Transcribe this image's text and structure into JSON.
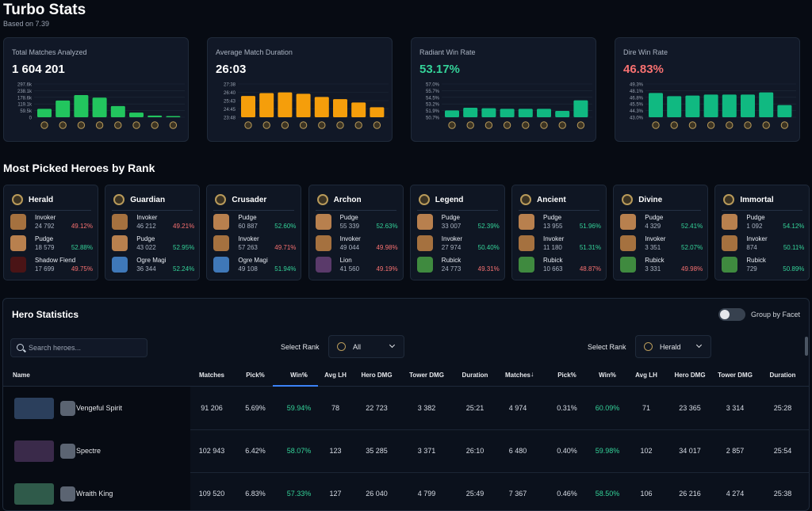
{
  "page": {
    "title": "Turbo Stats",
    "subtitle": "Based on 7.39"
  },
  "colors": {
    "green": "#34d399",
    "red": "#f87171",
    "bar_green": "#22c55e",
    "bar_orange": "#f59e0b",
    "bar_teal": "#10b981"
  },
  "stat_cards": [
    {
      "label": "Total Matches Analyzed",
      "value": "1 604 201",
      "value_color": "#ffffff",
      "chart_data": {
        "type": "bar",
        "y_ticks": [
          "297.6k",
          "238.1k",
          "178.6k",
          "119.1k",
          "59.5k",
          "0"
        ],
        "ylim": [
          0,
          297600
        ],
        "values": [
          75000,
          150000,
          198000,
          175000,
          100000,
          42000,
          15000,
          5000
        ],
        "bar_color": "#22c55e"
      }
    },
    {
      "label": "Average Match Duration",
      "value": "26:03",
      "value_color": "#ffffff",
      "chart_data": {
        "type": "bar",
        "y_ticks": [
          "27:38",
          "26:40",
          "25:43",
          "24:45",
          "23:48"
        ],
        "ylim": [
          1428,
          1658
        ],
        "values": [
          1575,
          1595,
          1600,
          1590,
          1568,
          1553,
          1530,
          1497
        ],
        "bar_color": "#f59e0b"
      }
    },
    {
      "label": "Radiant Win Rate",
      "value": "53.17%",
      "value_color": "#34d399",
      "chart_data": {
        "type": "bar",
        "y_ticks": [
          "57.0%",
          "55.7%",
          "54.5%",
          "53.2%",
          "51.9%",
          "50.7%"
        ],
        "ylim": [
          50.7,
          57.0
        ],
        "values": [
          52.0,
          52.5,
          52.4,
          52.3,
          52.3,
          52.3,
          51.9,
          53.9
        ],
        "bar_color": "#10b981"
      }
    },
    {
      "label": "Dire Win Rate",
      "value": "46.83%",
      "value_color": "#f87171",
      "chart_data": {
        "type": "bar",
        "y_ticks": [
          "49.3%",
          "48.1%",
          "46.8%",
          "45.5%",
          "44.3%",
          "43.0%"
        ],
        "ylim": [
          43.0,
          49.3
        ],
        "values": [
          47.6,
          47.0,
          47.1,
          47.3,
          47.3,
          47.3,
          47.7,
          45.3
        ],
        "bar_color": "#10b981"
      }
    }
  ],
  "most_picked": {
    "title": "Most Picked Heroes by Rank",
    "ranks": [
      {
        "name": "Herald",
        "heroes": [
          {
            "name": "Invoker",
            "matches": "24 792",
            "win": "49.12%",
            "positive": false,
            "avatar": "#a5713f"
          },
          {
            "name": "Pudge",
            "matches": "18 579",
            "win": "52.88%",
            "positive": true,
            "avatar": "#b8804e"
          },
          {
            "name": "Shadow Fiend",
            "matches": "17 699",
            "win": "49.75%",
            "positive": false,
            "avatar": "#4a1416"
          }
        ]
      },
      {
        "name": "Guardian",
        "heroes": [
          {
            "name": "Invoker",
            "matches": "46 212",
            "win": "49.21%",
            "positive": false,
            "avatar": "#a5713f"
          },
          {
            "name": "Pudge",
            "matches": "43 022",
            "win": "52.95%",
            "positive": true,
            "avatar": "#b8804e"
          },
          {
            "name": "Ogre Magi",
            "matches": "36 344",
            "win": "52.24%",
            "positive": true,
            "avatar": "#3f78b8"
          }
        ]
      },
      {
        "name": "Crusader",
        "heroes": [
          {
            "name": "Pudge",
            "matches": "60 887",
            "win": "52.60%",
            "positive": true,
            "avatar": "#b8804e"
          },
          {
            "name": "Invoker",
            "matches": "57 263",
            "win": "49.71%",
            "positive": false,
            "avatar": "#a5713f"
          },
          {
            "name": "Ogre Magi",
            "matches": "49 108",
            "win": "51.94%",
            "positive": true,
            "avatar": "#3f78b8"
          }
        ]
      },
      {
        "name": "Archon",
        "heroes": [
          {
            "name": "Pudge",
            "matches": "55 339",
            "win": "52.63%",
            "positive": true,
            "avatar": "#b8804e"
          },
          {
            "name": "Invoker",
            "matches": "49 044",
            "win": "49.98%",
            "positive": false,
            "avatar": "#a5713f"
          },
          {
            "name": "Lion",
            "matches": "41 560",
            "win": "49.19%",
            "positive": false,
            "avatar": "#5a3a6a"
          }
        ]
      },
      {
        "name": "Legend",
        "heroes": [
          {
            "name": "Pudge",
            "matches": "33 007",
            "win": "52.39%",
            "positive": true,
            "avatar": "#b8804e"
          },
          {
            "name": "Invoker",
            "matches": "27 974",
            "win": "50.40%",
            "positive": true,
            "avatar": "#a5713f"
          },
          {
            "name": "Rubick",
            "matches": "24 773",
            "win": "49.31%",
            "positive": false,
            "avatar": "#3f8a3f"
          }
        ]
      },
      {
        "name": "Ancient",
        "heroes": [
          {
            "name": "Pudge",
            "matches": "13 955",
            "win": "51.96%",
            "positive": true,
            "avatar": "#b8804e"
          },
          {
            "name": "Invoker",
            "matches": "11 180",
            "win": "51.31%",
            "positive": true,
            "avatar": "#a5713f"
          },
          {
            "name": "Rubick",
            "matches": "10 663",
            "win": "48.87%",
            "positive": false,
            "avatar": "#3f8a3f"
          }
        ]
      },
      {
        "name": "Divine",
        "heroes": [
          {
            "name": "Pudge",
            "matches": "4 329",
            "win": "52.41%",
            "positive": true,
            "avatar": "#b8804e"
          },
          {
            "name": "Invoker",
            "matches": "3 351",
            "win": "52.07%",
            "positive": true,
            "avatar": "#a5713f"
          },
          {
            "name": "Rubick",
            "matches": "3 331",
            "win": "49.98%",
            "positive": false,
            "avatar": "#3f8a3f"
          }
        ]
      },
      {
        "name": "Immortal",
        "heroes": [
          {
            "name": "Pudge",
            "matches": "1 092",
            "win": "54.12%",
            "positive": true,
            "avatar": "#b8804e"
          },
          {
            "name": "Invoker",
            "matches": "874",
            "win": "50.11%",
            "positive": true,
            "avatar": "#a5713f"
          },
          {
            "name": "Rubick",
            "matches": "729",
            "win": "50.89%",
            "positive": true,
            "avatar": "#3f8a3f"
          }
        ]
      }
    ]
  },
  "hero_stats": {
    "title": "Hero Statistics",
    "toggle_label": "Group by Facet",
    "toggle_on": false,
    "search_placeholder": "Search heroes...",
    "select_rank_label": "Select Rank",
    "left_select": "All",
    "right_select": "Herald",
    "columns": [
      "Name",
      "Matches",
      "Pick%",
      "Win%",
      "Avg LH",
      "Hero DMG",
      "Tower DMG",
      "Duration",
      "Matches",
      "Pick%",
      "Win%",
      "Avg LH",
      "Hero DMG",
      "Tower DMG",
      "Duration"
    ],
    "rows": [
      {
        "name": "Vengeful Spirit",
        "thumb": "#2b3f5c",
        "left": [
          "91 206",
          "5.69%",
          "59.94%",
          "78",
          "22 723",
          "3 382",
          "25:21"
        ],
        "right": [
          "4 974",
          "0.31%",
          "60.09%",
          "71",
          "23 365",
          "3 314",
          "25:28"
        ]
      },
      {
        "name": "Spectre",
        "thumb": "#3a2a4a",
        "left": [
          "102 943",
          "6.42%",
          "58.07%",
          "123",
          "35 285",
          "3 371",
          "26:10"
        ],
        "right": [
          "6 480",
          "0.40%",
          "59.98%",
          "102",
          "34 017",
          "2 857",
          "25:54"
        ]
      },
      {
        "name": "Wraith King",
        "thumb": "#2f5a4a",
        "left": [
          "109 520",
          "6.83%",
          "57.33%",
          "127",
          "26 040",
          "4 799",
          "25:49"
        ],
        "right": [
          "7 367",
          "0.46%",
          "58.50%",
          "106",
          "26 216",
          "4 274",
          "25:38"
        ]
      }
    ]
  }
}
